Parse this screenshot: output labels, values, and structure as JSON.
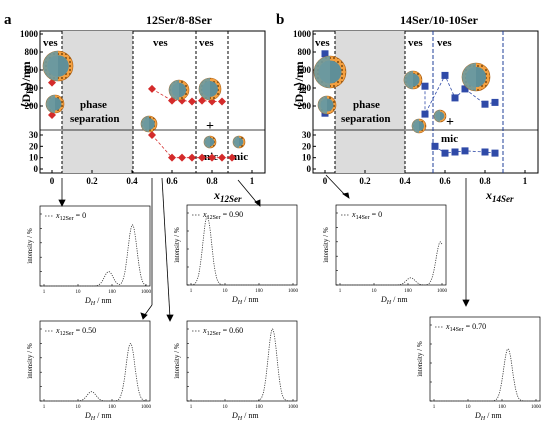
{
  "panels": [
    {
      "letter": "a",
      "title": "12Ser/8-8Ser",
      "title_color": "#c0192c",
      "marker_color": "#d42b2b",
      "marker": "diamond",
      "y_label": "⟨D",
      "y_label_sub": "H",
      "y_label_rest": "⟩/nm",
      "x_label": "x",
      "x_label_sub": "12Ser",
      "y_ticks_top": [
        "1000",
        "800",
        "600",
        "400",
        "200"
      ],
      "y_ticks_bottom": [
        "30",
        "20",
        "10",
        "0"
      ],
      "x_ticks": [
        "0",
        "0.2",
        "0.4",
        "0.6",
        "0.8",
        "1"
      ],
      "region_labels": {
        "ves_left": "ves",
        "phase1": "phase",
        "phase2": "separation",
        "ves_mid": "ves",
        "ves_right": "ves",
        "mic_mid": "mic",
        "mic_right": "mic",
        "plus": "+"
      }
    },
    {
      "letter": "b",
      "title": "14Ser/10-10Ser",
      "title_color": "#1f2f7a",
      "marker_color": "#2f4aa8",
      "marker": "square",
      "y_label": "⟨D",
      "y_label_sub": "H",
      "y_label_rest": "⟩/nm",
      "x_label": "x",
      "x_label_sub": "14Ser",
      "y_ticks_top": [
        "1000",
        "800",
        "600",
        "400",
        "200"
      ],
      "y_ticks_bottom": [
        "30",
        "20",
        "10",
        "0"
      ],
      "x_ticks": [
        "0",
        "0.2",
        "0.4",
        "0.6",
        "0.8",
        "1"
      ],
      "region_labels": {
        "ves_left": "ves",
        "phase1": "phase",
        "phase2": "separation",
        "ves_mid": "ves",
        "ves_right": "ves",
        "mic_mid": "mic",
        "plus": "+"
      }
    }
  ],
  "dls_common": {
    "ylabel": "intensity / %",
    "xlabel_main": "D",
    "xlabel_sub": "H",
    "xlabel_unit": " / nm",
    "x_ticks": [
      "1",
      "10",
      "100",
      "1000"
    ]
  },
  "dls_legends": {
    "a0": {
      "x": "x",
      "sub": "12Ser",
      "val": " = 0"
    },
    "a90": {
      "x": "x",
      "sub": "12Ser",
      "val": " = 0.90"
    },
    "a50": {
      "x": "x",
      "sub": "12Ser",
      "val": " = 0.50"
    },
    "a60": {
      "x": "x",
      "sub": "12Ser",
      "val": " = 0.60"
    },
    "b0": {
      "x": "x",
      "sub": "14Ser",
      "val": " = 0"
    },
    "b70": {
      "x": "x",
      "sub": "14Ser",
      "val": " = 0.70"
    }
  },
  "chart_data": [
    {
      "type": "scatter",
      "title": "12Ser/8-8Ser",
      "xlabel": "x12Ser",
      "ylabel": "⟨DH⟩/nm",
      "xlim": [
        0,
        1
      ],
      "ylim_top": [
        0,
        1000
      ],
      "ylim_bottom": [
        0,
        30
      ],
      "series": [
        {
          "points": [
            {
              "x": 0.0,
              "y": 460
            },
            {
              "x": 0.0,
              "y": 100
            },
            {
              "x": 0.5,
              "y": 390
            },
            {
              "x": 0.5,
              "y": 30
            },
            {
              "x": 0.6,
              "y": 260
            },
            {
              "x": 0.65,
              "y": 260
            },
            {
              "x": 0.7,
              "y": 250
            },
            {
              "x": 0.75,
              "y": 260
            },
            {
              "x": 0.8,
              "y": 250
            },
            {
              "x": 0.85,
              "y": 250
            },
            {
              "x": 0.6,
              "y": 10
            },
            {
              "x": 0.65,
              "y": 10
            },
            {
              "x": 0.7,
              "y": 10
            },
            {
              "x": 0.75,
              "y": 10
            },
            {
              "x": 0.8,
              "y": 10
            },
            {
              "x": 0.85,
              "y": 10
            },
            {
              "x": 0.9,
              "y": 10
            }
          ]
        }
      ]
    },
    {
      "type": "scatter",
      "title": "14Ser/10-10Ser",
      "xlabel": "x14Ser",
      "ylabel": "⟨DH⟩/nm",
      "xlim": [
        0,
        1
      ],
      "ylim_top": [
        0,
        1000
      ],
      "ylim_bottom": [
        0,
        30
      ],
      "series": [
        {
          "points": [
            {
              "x": 0.0,
              "y": 780
            },
            {
              "x": 0.0,
              "y": 120
            },
            {
              "x": 0.5,
              "y": 420
            },
            {
              "x": 0.5,
              "y": 110
            },
            {
              "x": 0.6,
              "y": 540
            },
            {
              "x": 0.65,
              "y": 290
            },
            {
              "x": 0.7,
              "y": 390
            },
            {
              "x": 0.8,
              "y": 220
            },
            {
              "x": 0.85,
              "y": 240
            },
            {
              "x": 0.55,
              "y": 20
            },
            {
              "x": 0.6,
              "y": 14
            },
            {
              "x": 0.65,
              "y": 15
            },
            {
              "x": 0.7,
              "y": 16
            },
            {
              "x": 0.8,
              "y": 15
            },
            {
              "x": 0.85,
              "y": 14
            }
          ]
        }
      ]
    },
    {
      "type": "line",
      "legend": "x12Ser = 0",
      "xscale": "log",
      "xlim": [
        1,
        1000
      ],
      "peaks": [
        {
          "center": 80,
          "height": 2
        },
        {
          "center": 400,
          "height": 8.5
        }
      ]
    },
    {
      "type": "line",
      "legend": "x12Ser = 0.90",
      "xscale": "log",
      "xlim": [
        1,
        1000
      ],
      "peaks": [
        {
          "center": 3,
          "height": 19
        }
      ]
    },
    {
      "type": "line",
      "legend": "x14Ser = 0",
      "xscale": "log",
      "xlim": [
        1,
        1000
      ],
      "peaks": [
        {
          "center": 120,
          "height": 1
        },
        {
          "center": 900,
          "height": 6
        }
      ]
    },
    {
      "type": "line",
      "legend": "x12Ser = 0.50",
      "xscale": "log",
      "xlim": [
        1,
        1000
      ],
      "peaks": [
        {
          "center": 25,
          "height": 1.3
        },
        {
          "center": 350,
          "height": 8
        }
      ]
    },
    {
      "type": "line",
      "legend": "x12Ser = 0.60",
      "xscale": "log",
      "xlim": [
        1,
        1000
      ],
      "peaks": [
        {
          "center": 250,
          "height": 10
        }
      ]
    },
    {
      "type": "line",
      "legend": "x14Ser = 0.70",
      "xscale": "log",
      "xlim": [
        1,
        1000
      ],
      "peaks": [
        {
          "center": 150,
          "height": 5.5
        }
      ]
    }
  ]
}
